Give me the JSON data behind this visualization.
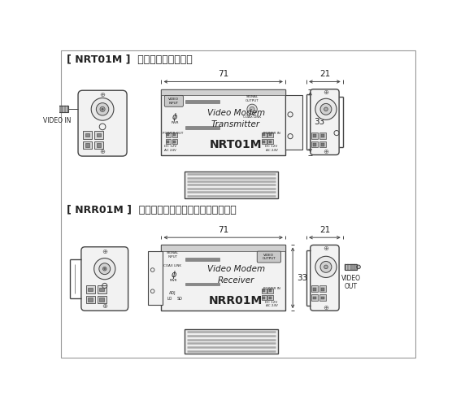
{
  "title_top": "[ NRT01M ]  送信機（カメラ側）",
  "title_bottom": "[ NRR01M ]  受信機（レコーダー、モニター側）",
  "dim_width": "71",
  "dim_height": "33",
  "dim_depth": "21",
  "label_video_in": "VIDEO IN",
  "label_video_out": "VIDEO\nOUT",
  "label_transmitter": "Video Modem\nTransmitter",
  "label_receiver": "Video Modem\nReceiver",
  "label_nrt": "NRT01M",
  "label_nrr": "NRR01M",
  "bg_color": "#ffffff",
  "line_color": "#444444",
  "text_color": "#222222",
  "panel_fill": "#f2f2f2",
  "strip_fill": "#d0d0d0",
  "conn_fill": "#dddddd",
  "fin_color": "#bbbbbb"
}
